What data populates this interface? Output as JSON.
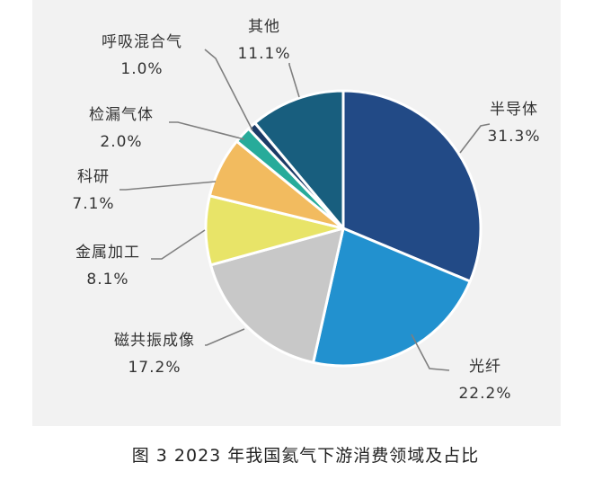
{
  "chart_data": {
    "type": "pie",
    "title": "",
    "slices": [
      {
        "label": "半导体",
        "value": 31.3,
        "display": "31.3%",
        "color": "#224a86"
      },
      {
        "label": "光纤",
        "value": 22.2,
        "display": "22.2%",
        "color": "#2291cf"
      },
      {
        "label": "磁共振成像",
        "value": 17.2,
        "display": "17.2%",
        "color": "#c8c8c8"
      },
      {
        "label": "金属加工",
        "value": 8.1,
        "display": "8.1%",
        "color": "#e8e468"
      },
      {
        "label": "科研",
        "value": 7.1,
        "display": "7.1%",
        "color": "#f2bb5f"
      },
      {
        "label": "检漏气体",
        "value": 2.0,
        "display": "2.0%",
        "color": "#27ab9a"
      },
      {
        "label": "呼吸混合气",
        "value": 1.0,
        "display": "1.0%",
        "color": "#1b3b66"
      },
      {
        "label": "其他",
        "value": 11.1,
        "display": "11.1%",
        "color": "#185e7e"
      }
    ],
    "start_angle_deg": 0,
    "direction": "clockwise",
    "legend": "none",
    "leader_line_color": "#7f7f7f"
  },
  "caption": "图 3  2023 年我国氦气下游消费领域及占比"
}
